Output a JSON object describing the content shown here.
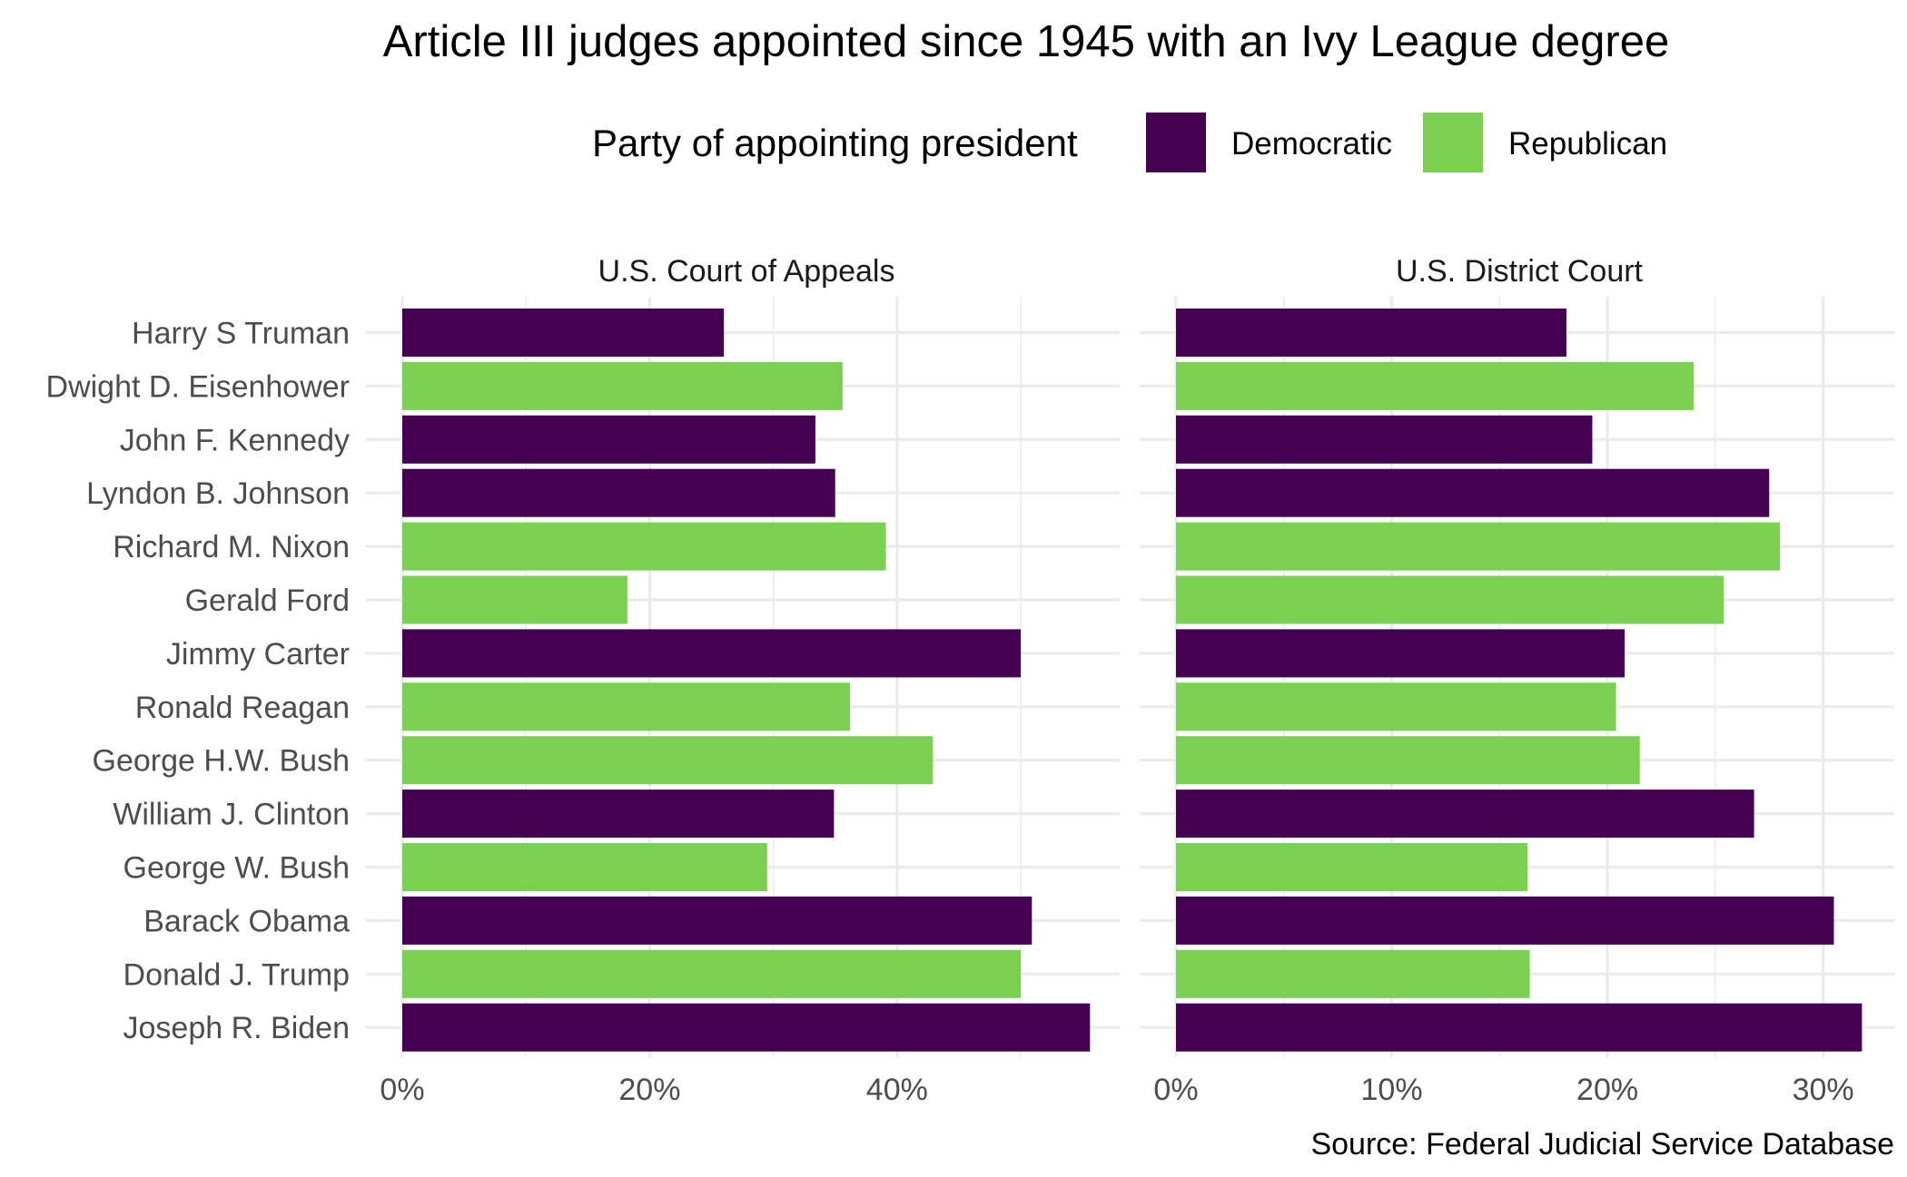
{
  "chart_data": {
    "type": "bar",
    "orientation": "horizontal",
    "title": "Article III judges appointed since 1945 with an Ivy League degree",
    "caption": "Source: Federal Judicial Service Database",
    "legend": {
      "title": "Party of appointing president",
      "position": "top",
      "entries": [
        {
          "name": "Democratic",
          "color": "#440154"
        },
        {
          "name": "Republican",
          "color": "#7AD151"
        }
      ]
    },
    "categories": [
      "Harry S Truman",
      "Dwight D. Eisenhower",
      "John F. Kennedy",
      "Lyndon B. Johnson",
      "Richard M. Nixon",
      "Gerald Ford",
      "Jimmy Carter",
      "Ronald Reagan",
      "George H.W. Bush",
      "William J. Clinton",
      "George W. Bush",
      "Barack Obama",
      "Donald J. Trump",
      "Joseph R. Biden"
    ],
    "party": [
      "Democratic",
      "Republican",
      "Democratic",
      "Democratic",
      "Republican",
      "Republican",
      "Democratic",
      "Republican",
      "Republican",
      "Democratic",
      "Republican",
      "Democratic",
      "Republican",
      "Democratic"
    ],
    "facets": [
      {
        "name": "U.S. Court of Appeals",
        "xlim": [
          0,
          0.58
        ],
        "ticks": [
          0,
          0.2,
          0.4
        ],
        "tick_labels": [
          "0%",
          "20%",
          "40%"
        ],
        "values": [
          0.26,
          0.356,
          0.334,
          0.35,
          0.391,
          0.182,
          0.5,
          0.362,
          0.429,
          0.349,
          0.295,
          0.509,
          0.5,
          0.556
        ]
      },
      {
        "name": "U.S. District Court",
        "xlim": [
          0,
          0.333
        ],
        "ticks": [
          0,
          0.1,
          0.2,
          0.3
        ],
        "tick_labels": [
          "0%",
          "10%",
          "20%",
          "30%"
        ],
        "values": [
          0.181,
          0.24,
          0.193,
          0.275,
          0.28,
          0.254,
          0.208,
          0.204,
          0.215,
          0.268,
          0.163,
          0.305,
          0.164,
          0.318
        ]
      }
    ]
  }
}
